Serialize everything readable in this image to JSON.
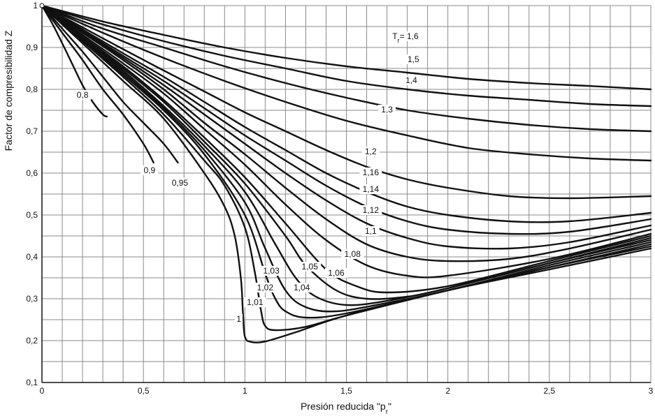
{
  "chart_data": {
    "type": "line",
    "title": "",
    "xlabel": "Presión reducida \"p",
    "xlabel_sub": "r",
    "xlabel_close": "\"",
    "ylabel": "Factor de compresibilidad Z",
    "xlim": [
      0,
      3
    ],
    "ylim": [
      0.1,
      1.0
    ],
    "x_ticks": [
      {
        "v": 0,
        "label": "0"
      },
      {
        "v": 0.5,
        "label": "0,5"
      },
      {
        "v": 1,
        "label": "1"
      },
      {
        "v": 1.5,
        "label": "1,5"
      },
      {
        "v": 2,
        "label": "2"
      },
      {
        "v": 2.5,
        "label": "2,5"
      },
      {
        "v": 3,
        "label": "3"
      }
    ],
    "y_ticks": [
      {
        "v": 0.1,
        "label": "0,1"
      },
      {
        "v": 0.2,
        "label": "0,2"
      },
      {
        "v": 0.3,
        "label": "0,3"
      },
      {
        "v": 0.4,
        "label": "0,4"
      },
      {
        "v": 0.5,
        "label": "0,5"
      },
      {
        "v": 0.6,
        "label": "0,6"
      },
      {
        "v": 0.7,
        "label": "0,7"
      },
      {
        "v": 0.8,
        "label": "0,8"
      },
      {
        "v": 0.9,
        "label": "0,9"
      },
      {
        "v": 1.0,
        "label": "1"
      }
    ],
    "grid": true,
    "colors": {
      "curve": "#111111",
      "grid": "#8a8a8a",
      "axis": "#111111"
    },
    "series": [
      {
        "name": "0,8",
        "label": "0,8",
        "points": [
          [
            0,
            1
          ],
          [
            0.05,
            0.958
          ],
          [
            0.1,
            0.91
          ],
          [
            0.15,
            0.86
          ],
          [
            0.2,
            0.81
          ],
          [
            0.25,
            0.77
          ],
          [
            0.3,
            0.74
          ],
          [
            0.32,
            0.735
          ]
        ]
      },
      {
        "name": "0,9",
        "label": "0,9",
        "points": [
          [
            0,
            1
          ],
          [
            0.1,
            0.935
          ],
          [
            0.2,
            0.87
          ],
          [
            0.3,
            0.8
          ],
          [
            0.4,
            0.74
          ],
          [
            0.5,
            0.67
          ],
          [
            0.55,
            0.625
          ]
        ]
      },
      {
        "name": "0,95",
        "label": "0,95",
        "points": [
          [
            0,
            1
          ],
          [
            0.1,
            0.945
          ],
          [
            0.2,
            0.89
          ],
          [
            0.3,
            0.83
          ],
          [
            0.4,
            0.77
          ],
          [
            0.5,
            0.72
          ],
          [
            0.6,
            0.67
          ],
          [
            0.67,
            0.625
          ]
        ]
      },
      {
        "name": "1",
        "label": "1",
        "points": [
          [
            0,
            1
          ],
          [
            0.2,
            0.91
          ],
          [
            0.4,
            0.82
          ],
          [
            0.6,
            0.73
          ],
          [
            0.8,
            0.6
          ],
          [
            0.9,
            0.52
          ],
          [
            0.95,
            0.45
          ],
          [
            0.98,
            0.35
          ],
          [
            0.99,
            0.27
          ],
          [
            1.0,
            0.21
          ],
          [
            1.03,
            0.197
          ],
          [
            1.1,
            0.198
          ],
          [
            1.25,
            0.22
          ],
          [
            1.5,
            0.26
          ],
          [
            2,
            0.32
          ],
          [
            2.5,
            0.37
          ],
          [
            3,
            0.42
          ]
        ]
      },
      {
        "name": "1,01",
        "label": "1,01",
        "points": [
          [
            0,
            1
          ],
          [
            0.2,
            0.915
          ],
          [
            0.4,
            0.83
          ],
          [
            0.6,
            0.74
          ],
          [
            0.8,
            0.63
          ],
          [
            0.9,
            0.57
          ],
          [
            1.0,
            0.47
          ],
          [
            1.05,
            0.36
          ],
          [
            1.08,
            0.27
          ],
          [
            1.1,
            0.235
          ],
          [
            1.15,
            0.225
          ],
          [
            1.3,
            0.233
          ],
          [
            1.5,
            0.26
          ],
          [
            2,
            0.32
          ],
          [
            2.5,
            0.375
          ],
          [
            3,
            0.425
          ]
        ]
      },
      {
        "name": "1,02",
        "label": "1,02",
        "points": [
          [
            0,
            1
          ],
          [
            0.2,
            0.918
          ],
          [
            0.4,
            0.835
          ],
          [
            0.6,
            0.75
          ],
          [
            0.8,
            0.645
          ],
          [
            1.0,
            0.5
          ],
          [
            1.1,
            0.36
          ],
          [
            1.15,
            0.3
          ],
          [
            1.2,
            0.27
          ],
          [
            1.3,
            0.255
          ],
          [
            1.5,
            0.265
          ],
          [
            2,
            0.32
          ],
          [
            2.5,
            0.375
          ],
          [
            3,
            0.43
          ]
        ]
      },
      {
        "name": "1,03",
        "label": "1,03",
        "points": [
          [
            0,
            1
          ],
          [
            0.2,
            0.92
          ],
          [
            0.4,
            0.84
          ],
          [
            0.6,
            0.755
          ],
          [
            0.8,
            0.655
          ],
          [
            1.0,
            0.53
          ],
          [
            1.1,
            0.42
          ],
          [
            1.2,
            0.32
          ],
          [
            1.3,
            0.28
          ],
          [
            1.45,
            0.27
          ],
          [
            1.7,
            0.29
          ],
          [
            2,
            0.32
          ],
          [
            2.5,
            0.38
          ],
          [
            3,
            0.435
          ]
        ]
      },
      {
        "name": "1,04",
        "label": "1,04",
        "points": [
          [
            0,
            1
          ],
          [
            0.2,
            0.922
          ],
          [
            0.4,
            0.845
          ],
          [
            0.6,
            0.76
          ],
          [
            0.8,
            0.665
          ],
          [
            1.0,
            0.555
          ],
          [
            1.15,
            0.43
          ],
          [
            1.25,
            0.35
          ],
          [
            1.35,
            0.305
          ],
          [
            1.5,
            0.285
          ],
          [
            1.7,
            0.295
          ],
          [
            2,
            0.325
          ],
          [
            2.5,
            0.385
          ],
          [
            3,
            0.44
          ]
        ]
      },
      {
        "name": "1,05",
        "label": "1,05",
        "points": [
          [
            0,
            1
          ],
          [
            0.2,
            0.924
          ],
          [
            0.4,
            0.85
          ],
          [
            0.6,
            0.77
          ],
          [
            0.8,
            0.675
          ],
          [
            1.0,
            0.575
          ],
          [
            1.2,
            0.45
          ],
          [
            1.3,
            0.38
          ],
          [
            1.45,
            0.32
          ],
          [
            1.6,
            0.3
          ],
          [
            1.8,
            0.305
          ],
          [
            2,
            0.325
          ],
          [
            2.5,
            0.385
          ],
          [
            3,
            0.445
          ]
        ]
      },
      {
        "name": "1,06",
        "label": "1,06",
        "points": [
          [
            0,
            1
          ],
          [
            0.2,
            0.926
          ],
          [
            0.4,
            0.855
          ],
          [
            0.6,
            0.775
          ],
          [
            0.8,
            0.685
          ],
          [
            1.0,
            0.59
          ],
          [
            1.2,
            0.48
          ],
          [
            1.4,
            0.37
          ],
          [
            1.55,
            0.33
          ],
          [
            1.7,
            0.315
          ],
          [
            2,
            0.33
          ],
          [
            2.5,
            0.39
          ],
          [
            3,
            0.45
          ]
        ]
      },
      {
        "name": "1,08",
        "label": "1,08",
        "points": [
          [
            0,
            1
          ],
          [
            0.2,
            0.93
          ],
          [
            0.4,
            0.862
          ],
          [
            0.6,
            0.79
          ],
          [
            0.8,
            0.705
          ],
          [
            1.0,
            0.62
          ],
          [
            1.2,
            0.525
          ],
          [
            1.4,
            0.44
          ],
          [
            1.6,
            0.38
          ],
          [
            1.8,
            0.355
          ],
          [
            2,
            0.355
          ],
          [
            2.5,
            0.395
          ],
          [
            3,
            0.455
          ]
        ]
      },
      {
        "name": "1,1",
        "label": "1,1",
        "points": [
          [
            0,
            1
          ],
          [
            0.2,
            0.935
          ],
          [
            0.4,
            0.87
          ],
          [
            0.6,
            0.8
          ],
          [
            0.8,
            0.72
          ],
          [
            1.0,
            0.645
          ],
          [
            1.2,
            0.565
          ],
          [
            1.4,
            0.49
          ],
          [
            1.6,
            0.43
          ],
          [
            1.8,
            0.4
          ],
          [
            2,
            0.39
          ],
          [
            2.3,
            0.395
          ],
          [
            2.6,
            0.42
          ],
          [
            3,
            0.465
          ]
        ]
      },
      {
        "name": "1,12",
        "label": "1,12",
        "points": [
          [
            0,
            1
          ],
          [
            0.2,
            0.937
          ],
          [
            0.4,
            0.875
          ],
          [
            0.6,
            0.81
          ],
          [
            0.8,
            0.74
          ],
          [
            1.0,
            0.67
          ],
          [
            1.2,
            0.6
          ],
          [
            1.4,
            0.535
          ],
          [
            1.6,
            0.48
          ],
          [
            1.8,
            0.445
          ],
          [
            2,
            0.425
          ],
          [
            2.3,
            0.42
          ],
          [
            2.6,
            0.435
          ],
          [
            3,
            0.475
          ]
        ]
      },
      {
        "name": "1,14",
        "label": "1,14",
        "points": [
          [
            0,
            1
          ],
          [
            0.2,
            0.94
          ],
          [
            0.4,
            0.88
          ],
          [
            0.6,
            0.82
          ],
          [
            0.8,
            0.755
          ],
          [
            1.0,
            0.69
          ],
          [
            1.2,
            0.63
          ],
          [
            1.4,
            0.57
          ],
          [
            1.6,
            0.52
          ],
          [
            1.8,
            0.485
          ],
          [
            2,
            0.465
          ],
          [
            2.3,
            0.455
          ],
          [
            2.6,
            0.46
          ],
          [
            3,
            0.49
          ]
        ]
      },
      {
        "name": "1,16",
        "label": "1,16",
        "points": [
          [
            0,
            1
          ],
          [
            0.2,
            0.943
          ],
          [
            0.4,
            0.886
          ],
          [
            0.6,
            0.83
          ],
          [
            0.8,
            0.77
          ],
          [
            1.0,
            0.71
          ],
          [
            1.2,
            0.655
          ],
          [
            1.4,
            0.6
          ],
          [
            1.6,
            0.555
          ],
          [
            1.8,
            0.52
          ],
          [
            2,
            0.5
          ],
          [
            2.3,
            0.485
          ],
          [
            2.6,
            0.485
          ],
          [
            3,
            0.505
          ]
        ]
      },
      {
        "name": "1,2",
        "label": "1,2",
        "points": [
          [
            0,
            1
          ],
          [
            0.2,
            0.948
          ],
          [
            0.4,
            0.896
          ],
          [
            0.6,
            0.845
          ],
          [
            0.8,
            0.795
          ],
          [
            1.0,
            0.745
          ],
          [
            1.2,
            0.7
          ],
          [
            1.4,
            0.655
          ],
          [
            1.6,
            0.615
          ],
          [
            1.8,
            0.585
          ],
          [
            2,
            0.565
          ],
          [
            2.3,
            0.545
          ],
          [
            2.6,
            0.54
          ],
          [
            3,
            0.545
          ]
        ]
      },
      {
        "name": "1,3",
        "label": "1,3",
        "points": [
          [
            0,
            1
          ],
          [
            0.3,
            0.935
          ],
          [
            0.6,
            0.875
          ],
          [
            0.9,
            0.82
          ],
          [
            1.2,
            0.77
          ],
          [
            1.5,
            0.725
          ],
          [
            1.8,
            0.69
          ],
          [
            2.1,
            0.66
          ],
          [
            2.4,
            0.645
          ],
          [
            2.7,
            0.635
          ],
          [
            3,
            0.63
          ]
        ]
      },
      {
        "name": "1,4",
        "label": "1,4",
        "points": [
          [
            0,
            1
          ],
          [
            0.3,
            0.945
          ],
          [
            0.6,
            0.9
          ],
          [
            0.9,
            0.855
          ],
          [
            1.2,
            0.815
          ],
          [
            1.5,
            0.78
          ],
          [
            1.8,
            0.75
          ],
          [
            2.1,
            0.73
          ],
          [
            2.4,
            0.715
          ],
          [
            2.7,
            0.705
          ],
          [
            3,
            0.7
          ]
        ]
      },
      {
        "name": "1,5",
        "label": "1,5",
        "points": [
          [
            0,
            1
          ],
          [
            0.3,
            0.955
          ],
          [
            0.6,
            0.915
          ],
          [
            0.9,
            0.88
          ],
          [
            1.2,
            0.85
          ],
          [
            1.5,
            0.82
          ],
          [
            1.8,
            0.8
          ],
          [
            2.1,
            0.785
          ],
          [
            2.4,
            0.775
          ],
          [
            2.7,
            0.765
          ],
          [
            3,
            0.76
          ]
        ]
      },
      {
        "name": "Tr = 1,6",
        "label": "1,6",
        "points": [
          [
            0,
            1
          ],
          [
            0.3,
            0.962
          ],
          [
            0.6,
            0.93
          ],
          [
            0.9,
            0.9
          ],
          [
            1.2,
            0.875
          ],
          [
            1.5,
            0.855
          ],
          [
            1.8,
            0.84
          ],
          [
            2.1,
            0.825
          ],
          [
            2.4,
            0.815
          ],
          [
            2.7,
            0.808
          ],
          [
            3,
            0.8
          ]
        ]
      }
    ],
    "label_prefix": {
      "T": "T",
      "sub": "r",
      "eq": "= "
    },
    "curve_label_positions": {
      "0,8": [
        0.2,
        0.78
      ],
      "0,9": [
        0.53,
        0.6
      ],
      "0,95": [
        0.68,
        0.57
      ],
      "1": [
        0.97,
        0.245
      ],
      "1,01": [
        1.05,
        0.285
      ],
      "1,02": [
        1.1,
        0.32
      ],
      "1,03": [
        1.13,
        0.36
      ],
      "1,04": [
        1.28,
        0.32
      ],
      "1,05": [
        1.32,
        0.37
      ],
      "1,06": [
        1.45,
        0.355
      ],
      "1,08": [
        1.53,
        0.4
      ],
      "1,1": [
        1.62,
        0.455
      ],
      "1,12": [
        1.62,
        0.505
      ],
      "1,14": [
        1.62,
        0.555
      ],
      "1,16": [
        1.62,
        0.595
      ],
      "1,2": [
        1.62,
        0.645
      ],
      "1,3": [
        1.7,
        0.745
      ],
      "1,4": [
        1.82,
        0.815
      ],
      "1,5": [
        1.83,
        0.865
      ],
      "1,6": [
        1.83,
        0.92
      ]
    }
  }
}
